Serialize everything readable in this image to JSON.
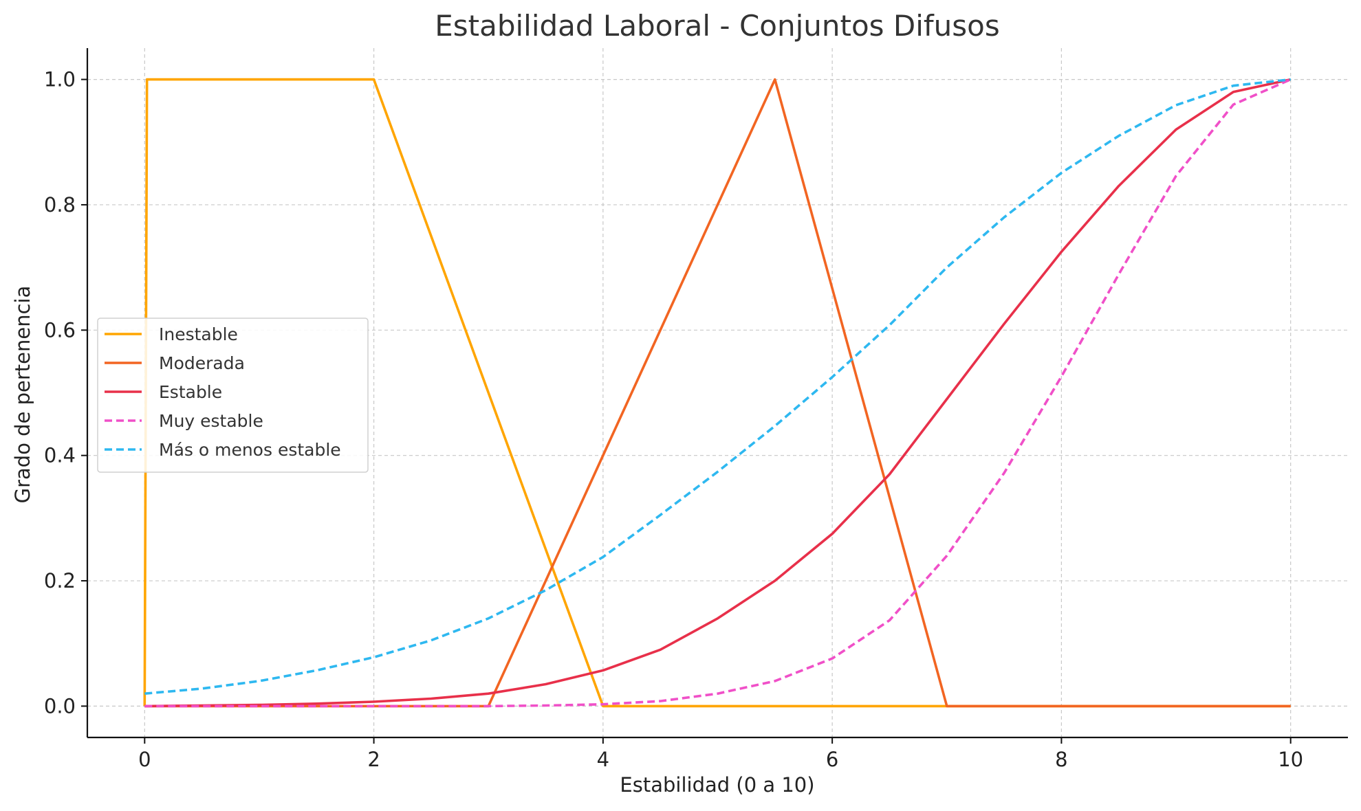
{
  "chart_data": {
    "type": "line",
    "title": "Estabilidad Laboral - Conjuntos Difusos",
    "xlabel": "Estabilidad (0 a 10)",
    "ylabel": "Grado de pertenencia",
    "xlim": [
      -0.5,
      10.5
    ],
    "ylim": [
      -0.05,
      1.05
    ],
    "xticks": [
      0,
      2,
      4,
      6,
      8,
      10
    ],
    "xtick_labels": [
      "0",
      "2",
      "4",
      "6",
      "8",
      "10"
    ],
    "yticks": [
      0.0,
      0.2,
      0.4,
      0.6,
      0.8,
      1.0
    ],
    "ytick_labels": [
      "0.0",
      "0.2",
      "0.4",
      "0.6",
      "0.8",
      "1.0"
    ],
    "grid": true,
    "legend_position": "center-left",
    "series": [
      {
        "name": "Inestable",
        "color": "#FFA500",
        "dashed": false,
        "x": [
          0,
          0.02,
          2,
          4,
          10
        ],
        "y": [
          0,
          1,
          1,
          0,
          0
        ]
      },
      {
        "name": "Moderada",
        "color": "#F26522",
        "dashed": false,
        "x": [
          0,
          3,
          5.5,
          7,
          10
        ],
        "y": [
          0,
          0,
          1,
          0,
          0
        ]
      },
      {
        "name": "Estable",
        "color": "#E8304A",
        "dashed": false,
        "x": [
          0,
          0.5,
          1,
          1.5,
          2,
          2.5,
          3,
          3.5,
          4,
          4.5,
          5,
          5.5,
          6,
          6.5,
          7,
          7.5,
          8,
          8.5,
          9,
          9.5,
          10
        ],
        "y": [
          0,
          0.001,
          0.002,
          0.004,
          0.007,
          0.012,
          0.02,
          0.035,
          0.057,
          0.09,
          0.14,
          0.2,
          0.275,
          0.37,
          0.49,
          0.61,
          0.725,
          0.83,
          0.92,
          0.98,
          1.0
        ]
      },
      {
        "name": "Muy estable",
        "color": "#F050C8",
        "dashed": true,
        "x": [
          0,
          1,
          2,
          3,
          3.5,
          4,
          4.5,
          5,
          5.5,
          6,
          6.5,
          7,
          7.5,
          8,
          8.5,
          9,
          9.5,
          10
        ],
        "y": [
          0,
          0,
          0,
          0,
          0.001,
          0.003,
          0.008,
          0.02,
          0.04,
          0.076,
          0.137,
          0.24,
          0.372,
          0.526,
          0.689,
          0.846,
          0.96,
          1.0
        ]
      },
      {
        "name": "Más o menos estable",
        "color": "#2EB8F0",
        "dashed": true,
        "x": [
          0,
          0.5,
          1,
          1.5,
          2,
          2.5,
          3,
          3.5,
          4,
          4.5,
          5,
          5.5,
          6,
          6.5,
          7,
          7.5,
          8,
          8.5,
          9,
          9.5,
          10
        ],
        "y": [
          0.02,
          0.028,
          0.04,
          0.057,
          0.078,
          0.105,
          0.14,
          0.185,
          0.238,
          0.305,
          0.374,
          0.447,
          0.525,
          0.608,
          0.7,
          0.78,
          0.851,
          0.91,
          0.959,
          0.99,
          1.0
        ]
      }
    ]
  }
}
